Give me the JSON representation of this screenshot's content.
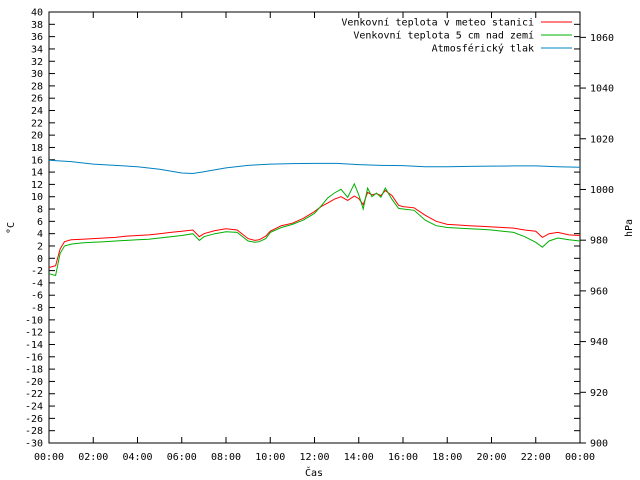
{
  "chart_data": {
    "type": "line",
    "xlabel": "Čas",
    "ylabel_left": "°C",
    "ylabel_right": "hPa",
    "ylim_left": [
      -30,
      40
    ],
    "ylim_right": [
      900,
      1070
    ],
    "x_ticks": [
      "00:00",
      "02:00",
      "04:00",
      "06:00",
      "08:00",
      "10:00",
      "12:00",
      "14:00",
      "16:00",
      "18:00",
      "20:00",
      "22:00",
      "00:00"
    ],
    "y_ticks_left": [
      "-30",
      "-28",
      "-26",
      "-24",
      "-22",
      "-20",
      "-18",
      "-16",
      "-14",
      "-12",
      "-10",
      "-8",
      "-6",
      "-4",
      "-2",
      "0",
      "2",
      "4",
      "6",
      "8",
      "10",
      "12",
      "14",
      "16",
      "18",
      "20",
      "22",
      "24",
      "26",
      "28",
      "30",
      "32",
      "34",
      "36",
      "38",
      "40"
    ],
    "y_ticks_right": [
      "900",
      "920",
      "940",
      "960",
      "980",
      "1000",
      "1020",
      "1040",
      "1060"
    ],
    "legend_position": "top-right",
    "grid": false,
    "series": [
      {
        "name": "Venkovní teplota v meteo stanici",
        "axis": "left",
        "color": "#ff0000",
        "x": [
          0,
          0.3,
          0.5,
          0.7,
          1,
          1.5,
          2,
          2.5,
          3,
          3.5,
          4,
          4.5,
          5,
          5.5,
          6,
          6.5,
          6.8,
          7,
          7.5,
          8,
          8.5,
          9,
          9.3,
          9.5,
          9.8,
          10,
          10.5,
          11,
          11.5,
          12,
          12.3,
          12.6,
          12.9,
          13.2,
          13.5,
          13.8,
          14.0,
          14.2,
          14.4,
          14.6,
          14.8,
          15.0,
          15.2,
          15.5,
          15.8,
          16,
          16.5,
          17,
          17.5,
          18,
          18.5,
          19,
          19.5,
          20,
          20.5,
          21,
          21.5,
          22,
          22.3,
          22.6,
          23,
          23.5,
          24
        ],
        "y": [
          -1.5,
          -1.2,
          1.5,
          2.7,
          3.0,
          3.1,
          3.2,
          3.3,
          3.4,
          3.6,
          3.7,
          3.8,
          4.0,
          4.2,
          4.4,
          4.6,
          3.5,
          4.0,
          4.5,
          4.8,
          4.6,
          3.2,
          2.9,
          3.0,
          3.6,
          4.4,
          5.3,
          5.7,
          6.5,
          7.6,
          8.4,
          9.0,
          9.6,
          10.0,
          9.4,
          10.1,
          9.7,
          8.7,
          10.7,
          10.3,
          10.5,
          10.2,
          11.0,
          10.2,
          8.6,
          8.4,
          8.2,
          7.0,
          6.0,
          5.5,
          5.4,
          5.3,
          5.2,
          5.1,
          5.0,
          4.9,
          4.6,
          4.4,
          3.4,
          4.0,
          4.2,
          3.8,
          3.7
        ]
      },
      {
        "name": "Venkovní teplota 5 cm nad zemí",
        "axis": "left",
        "color": "#00b000",
        "x": [
          0,
          0.3,
          0.5,
          0.7,
          1,
          1.5,
          2,
          2.5,
          3,
          3.5,
          4,
          4.5,
          5,
          5.5,
          6,
          6.5,
          6.8,
          7,
          7.5,
          8,
          8.5,
          9,
          9.3,
          9.5,
          9.8,
          10,
          10.5,
          11,
          11.5,
          12,
          12.3,
          12.6,
          12.9,
          13.2,
          13.5,
          13.8,
          14.0,
          14.2,
          14.4,
          14.6,
          14.8,
          15.0,
          15.2,
          15.5,
          15.8,
          16,
          16.5,
          17,
          17.5,
          18,
          18.5,
          19,
          19.5,
          20,
          20.5,
          21,
          21.5,
          22,
          22.3,
          22.6,
          23,
          23.5,
          24
        ],
        "y": [
          -2.5,
          -2.8,
          0.8,
          2.0,
          2.3,
          2.5,
          2.6,
          2.7,
          2.8,
          2.9,
          3.0,
          3.1,
          3.3,
          3.5,
          3.7,
          4.0,
          2.9,
          3.5,
          4.0,
          4.3,
          4.2,
          2.8,
          2.6,
          2.7,
          3.2,
          4.2,
          5.0,
          5.5,
          6.2,
          7.3,
          8.5,
          9.8,
          10.6,
          11.2,
          9.9,
          12.1,
          10.3,
          8.0,
          11.4,
          10.0,
          10.6,
          9.9,
          11.4,
          9.6,
          8.1,
          8.0,
          7.8,
          6.2,
          5.3,
          5.0,
          4.9,
          4.8,
          4.7,
          4.6,
          4.4,
          4.2,
          3.5,
          2.6,
          1.8,
          2.8,
          3.3,
          3.0,
          2.8
        ]
      },
      {
        "name": "Atmosférický tlak",
        "axis": "right",
        "color": "#0080c0",
        "x": [
          0,
          1,
          2,
          3,
          4,
          5,
          6,
          6.5,
          7,
          8,
          9,
          10,
          11,
          12,
          13,
          14,
          15,
          16,
          17,
          18,
          19,
          20,
          21,
          22,
          23,
          24
        ],
        "y": [
          1011.5,
          1011,
          1010,
          1009.5,
          1009,
          1008,
          1006.5,
          1006.3,
          1007,
          1008.5,
          1009.5,
          1010,
          1010.2,
          1010.3,
          1010.3,
          1009.8,
          1009.5,
          1009.4,
          1009.0,
          1009.0,
          1009.1,
          1009.2,
          1009.3,
          1009.3,
          1009.0,
          1008.8
        ]
      }
    ]
  }
}
